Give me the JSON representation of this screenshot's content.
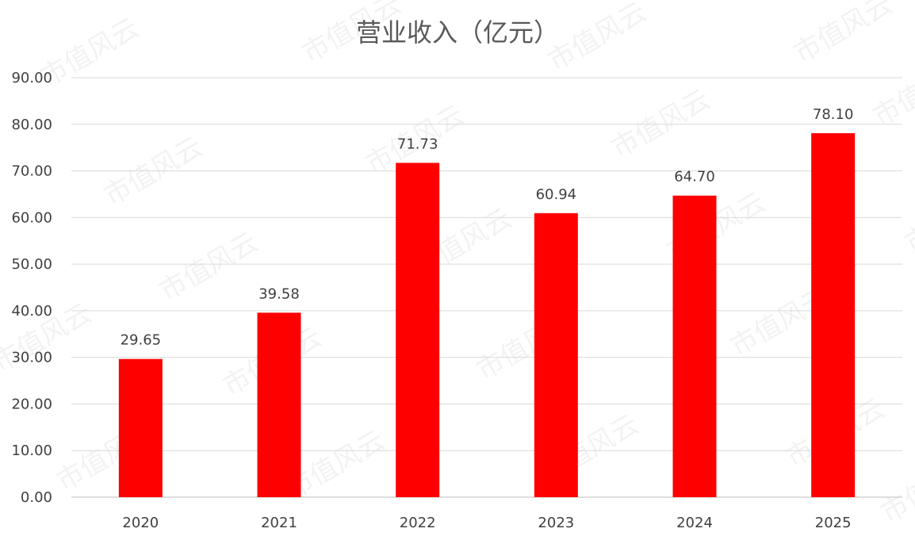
{
  "chart_data": {
    "type": "bar",
    "title": "营业收入（亿元）",
    "categories": [
      "2020",
      "2021",
      "2022",
      "2023",
      "2024",
      "2025"
    ],
    "values": [
      29.65,
      39.58,
      71.73,
      60.94,
      64.7,
      78.1
    ],
    "value_labels": [
      "29.65",
      "39.58",
      "71.73",
      "60.94",
      "64.70",
      "78.10"
    ],
    "xlabel": "",
    "ylabel": "",
    "ylim": [
      0,
      90
    ],
    "yticks": [
      "0.00",
      "10.00",
      "20.00",
      "30.00",
      "40.00",
      "50.00",
      "60.00",
      "70.00",
      "80.00",
      "90.00"
    ],
    "grid": true,
    "legend": "none",
    "bar_color": "#ff0000"
  },
  "watermark": "市值风云"
}
